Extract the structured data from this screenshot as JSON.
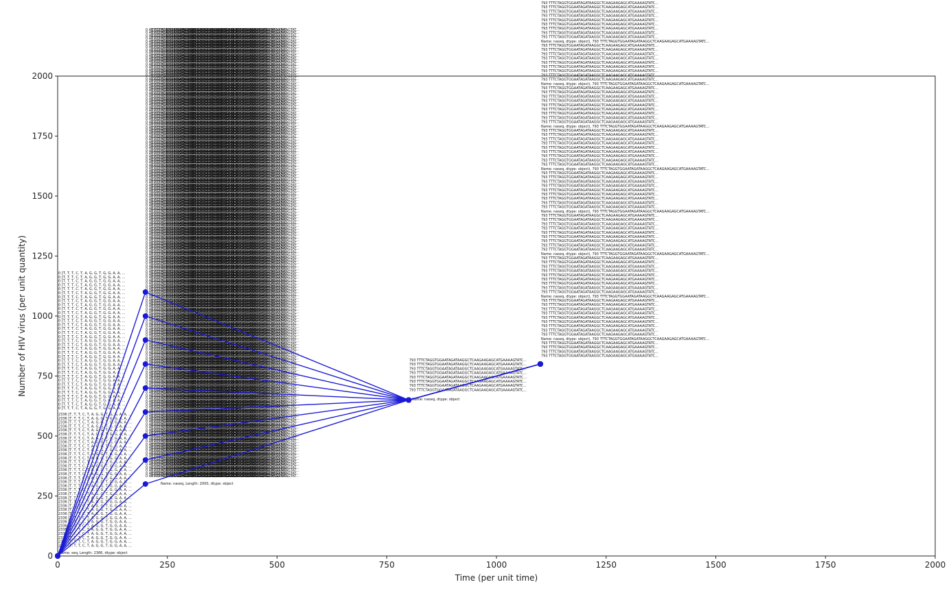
{
  "chart_data": {
    "type": "line",
    "x_label": "Time (per unit time)",
    "y_label": "Number of HIV virus (per unit quantity)",
    "xlim": [
      0,
      2000
    ],
    "ylim": [
      0,
      2000
    ],
    "xticks": [
      0,
      250,
      500,
      750,
      1000,
      1250,
      1500,
      1750,
      2000
    ],
    "yticks": [
      0,
      250,
      500,
      750,
      1000,
      1250,
      1500,
      1750,
      2000
    ],
    "series": [
      {
        "color": "#1a1ad6",
        "x": [
          0,
          200,
          800,
          1100
        ],
        "values": [
          0,
          300,
          650,
          800
        ]
      },
      {
        "color": "#1a1ad6",
        "x": [
          0,
          200,
          800,
          1100
        ],
        "values": [
          0,
          400,
          650,
          800
        ]
      },
      {
        "color": "#1a1ad6",
        "x": [
          0,
          200,
          800,
          1100
        ],
        "values": [
          0,
          500,
          650,
          800
        ]
      },
      {
        "color": "#1a1ad6",
        "x": [
          0,
          200,
          800,
          1100
        ],
        "values": [
          0,
          600,
          650,
          800
        ]
      },
      {
        "color": "#1a1ad6",
        "x": [
          0,
          200,
          800,
          1100
        ],
        "values": [
          0,
          700,
          650,
          800
        ]
      },
      {
        "color": "#1a1ad6",
        "x": [
          0,
          200,
          800,
          1100
        ],
        "values": [
          0,
          800,
          650,
          800
        ]
      },
      {
        "color": "#1a1ad6",
        "x": [
          0,
          200,
          800,
          1100
        ],
        "values": [
          0,
          900,
          650,
          800
        ]
      },
      {
        "color": "#1a1ad6",
        "x": [
          0,
          200,
          800,
          1100
        ],
        "values": [
          0,
          1000,
          650,
          800
        ]
      },
      {
        "color": "#1a1ad6",
        "x": [
          0,
          200,
          800,
          1100
        ],
        "values": [
          0,
          1100,
          650,
          800
        ]
      }
    ],
    "annotations": [
      {
        "lines": [
          "793    TTTCTAGGTGGAATAGATAAGGCTCAAGAAGAGCATGAAAAGTATC...",
          "Name: naseq, dtype: object), 793    TTTCTAGGTGGAATAGATAAGGCTCAAGAAGAGCATGAAAAGTATC..."
        ]
      },
      {
        "lines": [
          "793    TTTCTAGGTGGAATAGATAAGGCTCAAGAAGAGCATGAAAAGTATC...",
          "Name: naseq, dtype: object"
        ]
      },
      {
        "lines": [
          "0      [T, T, T, C, T, A, G, G, T, G, G, A, A, ...",
          "2336   [T, T, T, C, T, A, G, G, T, G, G, A, A, ...",
          "Name: seq, Length: 2366, dtype: object"
        ]
      },
      {
        "lines": [
          "0    ATTTCTAGGTGGAATAGATAAGGCTCAAGAAGAGCATGAAAAGTAT...",
          "Name: naseq, Length: 2000, dtype: object"
        ]
      }
    ]
  }
}
